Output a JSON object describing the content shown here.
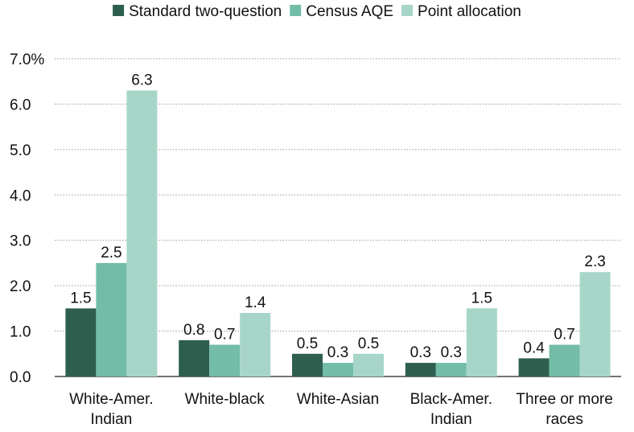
{
  "chart_data": {
    "type": "bar",
    "categories": [
      [
        "White-Amer.",
        "Indian"
      ],
      [
        "White-black"
      ],
      [
        "White-Asian"
      ],
      [
        "Black-Amer.",
        "Indian"
      ],
      [
        "Three or more",
        "races"
      ]
    ],
    "series": [
      {
        "name": "Standard two-question",
        "color": "#2e5e4e",
        "values": [
          1.5,
          0.8,
          0.5,
          0.3,
          0.4
        ]
      },
      {
        "name": "Census AQE",
        "color": "#73bda8",
        "values": [
          2.5,
          0.7,
          0.3,
          0.3,
          0.7
        ]
      },
      {
        "name": "Point allocation",
        "color": "#a7d6c9",
        "values": [
          6.3,
          1.4,
          0.5,
          1.5,
          2.3
        ]
      }
    ],
    "y_ticks": [
      "0.0",
      "1.0",
      "2.0",
      "3.0",
      "4.0",
      "5.0",
      "6.0",
      "7.0%"
    ],
    "ylim": [
      0,
      7
    ],
    "grid": "horizontal dotted",
    "legend_position": "top-center",
    "xlabel": "",
    "ylabel": "",
    "title": ""
  }
}
